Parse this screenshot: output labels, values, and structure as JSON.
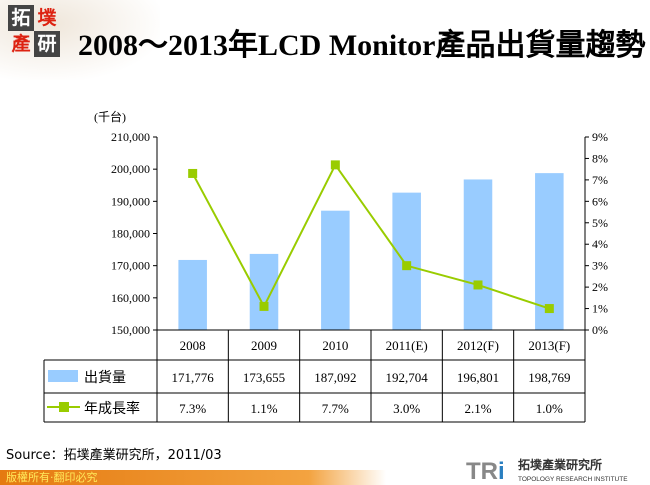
{
  "header": {
    "logo_chars": [
      "拓",
      "墣",
      "產",
      "研"
    ],
    "title": "2008～2013年LCD Monitor產品出貨量趨勢"
  },
  "chart_data": {
    "type": "bar+line",
    "title": "2008～2013年LCD Monitor產品出貨量趨勢",
    "ylabel": "(千台)",
    "categories": [
      "2008",
      "2009",
      "2010",
      "2011(E)",
      "2012(F)",
      "2013(F)"
    ],
    "series": [
      {
        "name": "出貨量",
        "type": "bar",
        "axis": "left",
        "color": "#99ccff",
        "values": [
          171776,
          173655,
          187092,
          192704,
          196801,
          198769
        ],
        "labels": [
          "171,776",
          "173,655",
          "187,092",
          "192,704",
          "196,801",
          "198,769"
        ]
      },
      {
        "name": "年成長率",
        "type": "line",
        "axis": "right",
        "color": "#99cc00",
        "values": [
          7.3,
          1.1,
          7.7,
          3.0,
          2.1,
          1.0
        ],
        "labels": [
          "7.3%",
          "1.1%",
          "7.7%",
          "3.0%",
          "2.1%",
          "1.0%"
        ]
      }
    ],
    "ylim": [
      150000,
      210000
    ],
    "yticks": [
      "150,000",
      "160,000",
      "170,000",
      "180,000",
      "190,000",
      "200,000",
      "210,000"
    ],
    "y2lim": [
      0,
      9
    ],
    "y2ticks": [
      "0%",
      "1%",
      "2%",
      "3%",
      "4%",
      "5%",
      "6%",
      "7%",
      "8%",
      "9%"
    ],
    "data_table": true
  },
  "source": "Source：拓墣產業研究所，2011/03",
  "footer": "版權所有‧翻印必究",
  "brand": {
    "mark_a": "TR",
    "mark_b": "i",
    "name_cn": "拓墣產業研究所",
    "name_en": "TOPOLOGY RESEARCH INSTITUTE"
  }
}
